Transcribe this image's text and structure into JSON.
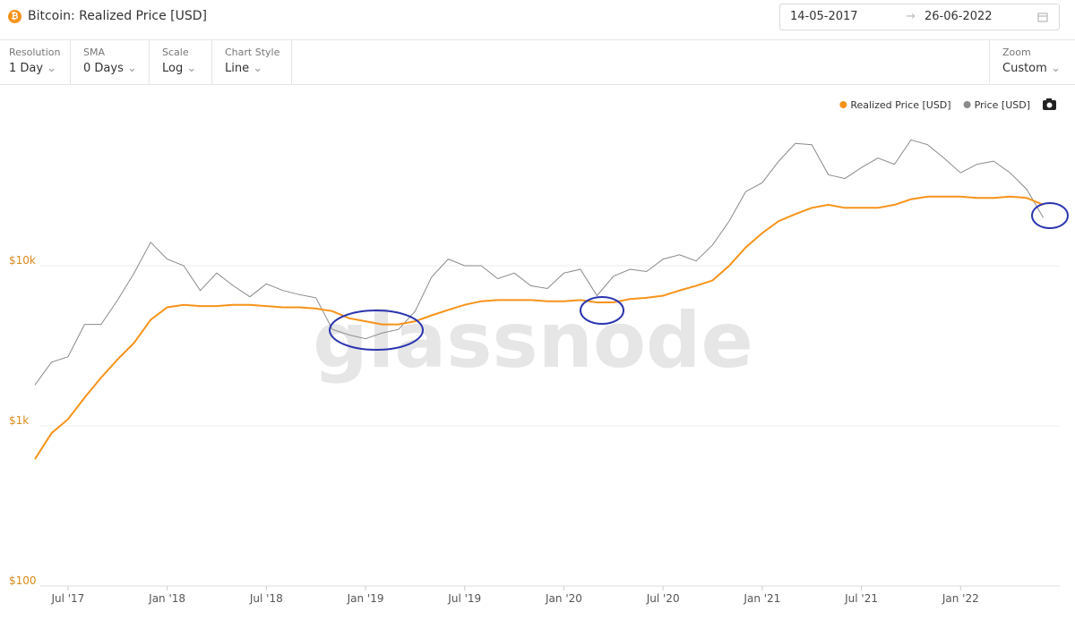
{
  "header": {
    "title": "Bitcoin: Realized Price [USD]",
    "date_from": "14-05-2017",
    "date_to": "26-06-2022"
  },
  "toolbar": [
    {
      "label": "Resolution",
      "value": "1 Day"
    },
    {
      "label": "SMA",
      "value": "0 Days"
    },
    {
      "label": "Scale",
      "value": "Log"
    },
    {
      "label": "Chart Style",
      "value": "Line"
    },
    {
      "label": "Zoom",
      "value": "Custom"
    }
  ],
  "chart_data": {
    "type": "line",
    "watermark": "glassnode",
    "yscale": "log",
    "grid": true,
    "x": [
      "2017-05",
      "2017-06",
      "2017-07",
      "2017-08",
      "2017-09",
      "2017-10",
      "2017-11",
      "2017-12",
      "2018-01",
      "2018-02",
      "2018-03",
      "2018-04",
      "2018-05",
      "2018-06",
      "2018-07",
      "2018-08",
      "2018-09",
      "2018-10",
      "2018-11",
      "2018-12",
      "2019-01",
      "2019-02",
      "2019-03",
      "2019-04",
      "2019-05",
      "2019-06",
      "2019-07",
      "2019-08",
      "2019-09",
      "2019-10",
      "2019-11",
      "2019-12",
      "2020-01",
      "2020-02",
      "2020-03",
      "2020-04",
      "2020-05",
      "2020-06",
      "2020-07",
      "2020-08",
      "2020-09",
      "2020-10",
      "2020-11",
      "2020-12",
      "2021-01",
      "2021-02",
      "2021-03",
      "2021-04",
      "2021-05",
      "2021-06",
      "2021-07",
      "2021-08",
      "2021-09",
      "2021-10",
      "2021-11",
      "2021-12",
      "2022-01",
      "2022-02",
      "2022-03",
      "2022-04",
      "2022-05",
      "2022-06"
    ],
    "series": [
      {
        "name": "Realized Price [USD]",
        "color": "#f7931a",
        "values": [
          620,
          900,
          1100,
          1500,
          2000,
          2600,
          3300,
          4600,
          5500,
          5700,
          5600,
          5600,
          5700,
          5700,
          5600,
          5500,
          5500,
          5400,
          5200,
          4700,
          4500,
          4300,
          4300,
          4500,
          4900,
          5300,
          5700,
          6000,
          6100,
          6100,
          6100,
          6000,
          6000,
          6100,
          5900,
          5900,
          6200,
          6300,
          6500,
          7000,
          7500,
          8100,
          10000,
          13000,
          16000,
          19000,
          21000,
          23000,
          24000,
          23000,
          23000,
          23000,
          24000,
          26000,
          27000,
          27000,
          27000,
          26500,
          26500,
          27000,
          26500,
          24000
        ]
      },
      {
        "name": "Price [USD]",
        "color": "#8a8a8a",
        "values": [
          1800,
          2500,
          2700,
          4300,
          4300,
          6100,
          9000,
          14000,
          11000,
          10000,
          7000,
          9000,
          7500,
          6400,
          7700,
          7000,
          6600,
          6300,
          4000,
          3700,
          3500,
          3800,
          4000,
          5200,
          8500,
          11000,
          10000,
          10000,
          8300,
          9000,
          7500,
          7200,
          9000,
          9500,
          6500,
          8600,
          9500,
          9200,
          11000,
          11700,
          10700,
          13500,
          19000,
          29000,
          33000,
          45000,
          58000,
          57000,
          37000,
          35000,
          41000,
          47000,
          43000,
          61000,
          57000,
          47000,
          38000,
          43000,
          45000,
          38000,
          30000,
          20000
        ]
      }
    ],
    "xlim": [
      "2017-05",
      "2022-07"
    ],
    "xticks": [
      {
        "value": "2017-07",
        "label": "Jul '17"
      },
      {
        "value": "2018-01",
        "label": "Jan '18"
      },
      {
        "value": "2018-07",
        "label": "Jul '18"
      },
      {
        "value": "2019-01",
        "label": "Jan '19"
      },
      {
        "value": "2019-07",
        "label": "Jul '19"
      },
      {
        "value": "2020-01",
        "label": "Jan '20"
      },
      {
        "value": "2020-07",
        "label": "Jul '20"
      },
      {
        "value": "2021-01",
        "label": "Jan '21"
      },
      {
        "value": "2021-07",
        "label": "Jul '21"
      },
      {
        "value": "2022-01",
        "label": "Jan '22"
      }
    ],
    "ylim": [
      100,
      100000
    ],
    "yticks": [
      {
        "value": 100,
        "label": "$100"
      },
      {
        "value": 1000,
        "label": "$1k"
      },
      {
        "value": 10000,
        "label": "$10k"
      }
    ]
  }
}
